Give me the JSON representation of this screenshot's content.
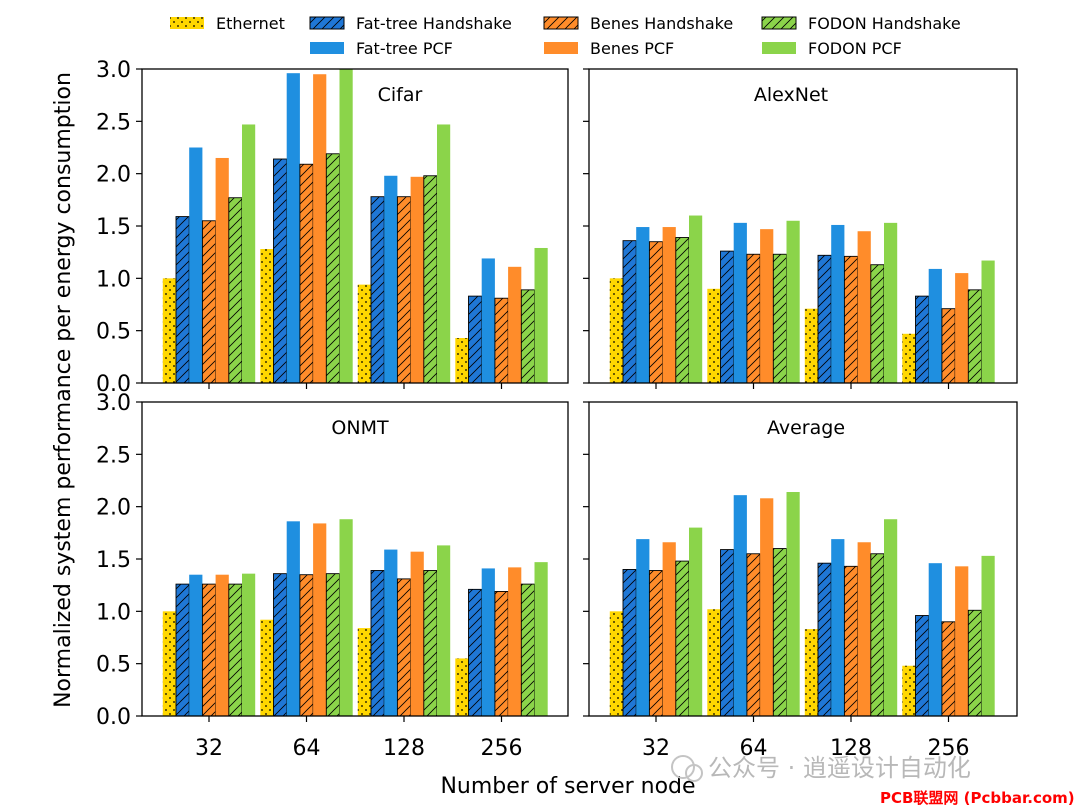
{
  "chart_data": {
    "type": "bar",
    "ylabel": "Normalized system performance per energy consumption",
    "xlabel": "Number of server node",
    "ylim": [
      0,
      3.0
    ],
    "yticks": [
      0.0,
      0.5,
      1.0,
      1.5,
      2.0,
      2.5,
      3.0
    ],
    "ytick_labels": [
      "0.0",
      "0.5",
      "1.0",
      "1.5",
      "2.0",
      "2.5",
      "3.0"
    ],
    "categories": [
      "32",
      "64",
      "128",
      "256"
    ],
    "legend": {
      "placement": "top",
      "entries": [
        {
          "label": "Ethernet",
          "color": "#FFD700",
          "hatch": "dots"
        },
        {
          "label": "Fat-tree Handshake",
          "color": "#1F77D6",
          "hatch": "diag"
        },
        {
          "label": "Benes Handshake",
          "color": "#FF8C2A",
          "hatch": "diag"
        },
        {
          "label": "FODON Handshake",
          "color": "#8BD44A",
          "hatch": "diag"
        },
        {
          "label": "Fat-tree PCF",
          "color": "#1F8FE0",
          "hatch": "none"
        },
        {
          "label": "Benes PCF",
          "color": "#FF8C2A",
          "hatch": "none"
        },
        {
          "label": "FODON PCF",
          "color": "#8BD44A",
          "hatch": "none"
        }
      ]
    },
    "panels": [
      {
        "title": "Cifar",
        "series": [
          {
            "name": "Ethernet",
            "values": [
              1.0,
              1.28,
              0.94,
              0.43
            ]
          },
          {
            "name": "Fat-tree Handshake",
            "values": [
              1.59,
              2.14,
              1.78,
              0.83
            ]
          },
          {
            "name": "Fat-tree PCF",
            "values": [
              2.25,
              2.96,
              1.98,
              1.19
            ]
          },
          {
            "name": "Benes Handshake",
            "values": [
              1.55,
              2.09,
              1.78,
              0.81
            ]
          },
          {
            "name": "Benes PCF",
            "values": [
              2.15,
              2.95,
              1.97,
              1.11
            ]
          },
          {
            "name": "FODON Handshake",
            "values": [
              1.77,
              2.19,
              1.98,
              0.89
            ]
          },
          {
            "name": "FODON PCF",
            "values": [
              2.47,
              3.0,
              2.47,
              1.29
            ]
          }
        ]
      },
      {
        "title": "AlexNet",
        "series": [
          {
            "name": "Ethernet",
            "values": [
              1.0,
              0.9,
              0.71,
              0.47
            ]
          },
          {
            "name": "Fat-tree Handshake",
            "values": [
              1.36,
              1.26,
              1.22,
              0.83
            ]
          },
          {
            "name": "Fat-tree PCF",
            "values": [
              1.49,
              1.53,
              1.51,
              1.09
            ]
          },
          {
            "name": "Benes Handshake",
            "values": [
              1.35,
              1.23,
              1.21,
              0.71
            ]
          },
          {
            "name": "Benes PCF",
            "values": [
              1.49,
              1.47,
              1.45,
              1.05
            ]
          },
          {
            "name": "FODON Handshake",
            "values": [
              1.39,
              1.23,
              1.13,
              0.89
            ]
          },
          {
            "name": "FODON PCF",
            "values": [
              1.6,
              1.55,
              1.53,
              1.17
            ]
          }
        ]
      },
      {
        "title": "ONMT",
        "series": [
          {
            "name": "Ethernet",
            "values": [
              1.0,
              0.92,
              0.84,
              0.55
            ]
          },
          {
            "name": "Fat-tree Handshake",
            "values": [
              1.26,
              1.36,
              1.39,
              1.21
            ]
          },
          {
            "name": "Fat-tree PCF",
            "values": [
              1.35,
              1.86,
              1.59,
              1.41
            ]
          },
          {
            "name": "Benes Handshake",
            "values": [
              1.26,
              1.35,
              1.31,
              1.19
            ]
          },
          {
            "name": "Benes PCF",
            "values": [
              1.35,
              1.84,
              1.57,
              1.42
            ]
          },
          {
            "name": "FODON Handshake",
            "values": [
              1.26,
              1.36,
              1.39,
              1.26
            ]
          },
          {
            "name": "FODON PCF",
            "values": [
              1.36,
              1.88,
              1.63,
              1.47
            ]
          }
        ]
      },
      {
        "title": "Average",
        "series": [
          {
            "name": "Ethernet",
            "values": [
              1.0,
              1.02,
              0.83,
              0.48
            ]
          },
          {
            "name": "Fat-tree Handshake",
            "values": [
              1.4,
              1.59,
              1.46,
              0.96
            ]
          },
          {
            "name": "Fat-tree PCF",
            "values": [
              1.69,
              2.11,
              1.69,
              1.46
            ]
          },
          {
            "name": "Benes Handshake",
            "values": [
              1.39,
              1.55,
              1.43,
              0.9
            ]
          },
          {
            "name": "Benes PCF",
            "values": [
              1.66,
              2.08,
              1.66,
              1.43
            ]
          },
          {
            "name": "FODON Handshake",
            "values": [
              1.48,
              1.6,
              1.55,
              1.01
            ]
          },
          {
            "name": "FODON PCF",
            "values": [
              1.8,
              2.14,
              1.88,
              1.53
            ]
          }
        ]
      }
    ]
  },
  "watermark": {
    "text": "公众号 · 逍遥设计自动化",
    "url": "PCB联盟网 (Pcbbar.com)"
  }
}
